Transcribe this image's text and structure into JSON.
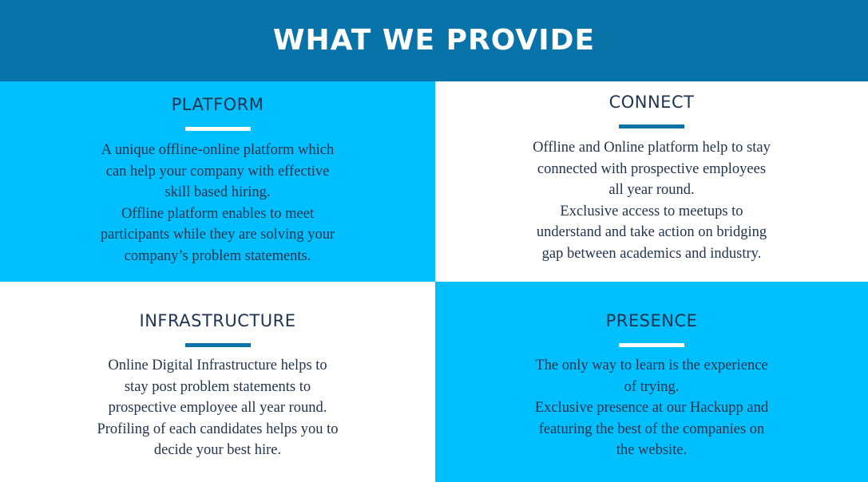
{
  "header": {
    "title": "WHAT WE PROVIDE"
  },
  "colors": {
    "header_bg": "#0873a8",
    "accent_blue": "#00bfff",
    "text_dark": "#1e3350",
    "white": "#ffffff"
  },
  "cards": [
    {
      "title": "PLATFORM",
      "lines": [
        "A unique offline-online platform which",
        "can help your company with effective",
        "skill based hiring.",
        "Offline platform enables to meet",
        "participants while they are solving your",
        "company’s problem statements."
      ]
    },
    {
      "title": "CONNECT",
      "lines": [
        "Offline and Online platform help to stay",
        "connected with prospective employees",
        "all year round.",
        "Exclusive access to meetups to",
        "understand and take action on bridging",
        "gap between academics and industry."
      ]
    },
    {
      "title": "INFRASTRUCTURE",
      "lines": [
        "Online Digital Infrastructure helps to",
        "stay post problem statements to",
        "prospective employee all year round.",
        "Profiling of each candidates helps you to",
        "decide your best hire."
      ]
    },
    {
      "title": "PRESENCE",
      "lines": [
        "The only way to learn is the experience",
        "of trying.",
        "Exclusive presence at our Hackupp and",
        "featuring the best of the companies on",
        "the website."
      ]
    }
  ]
}
